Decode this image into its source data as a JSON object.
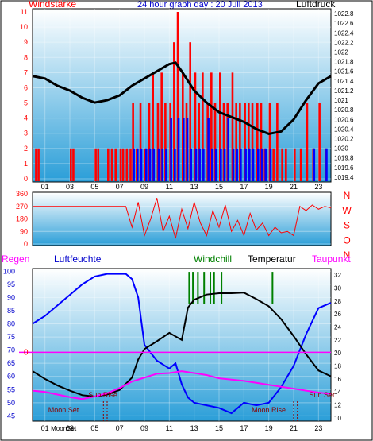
{
  "header": {
    "title": "24 hour graph day : 20 Juli 2013",
    "left_label": "Windstärke",
    "right_label": "Luftdruck"
  },
  "colors": {
    "wind_speed": "#ff0000",
    "wind_gust": "#0000ff",
    "pressure": "#000000",
    "direction": "#ff0000",
    "humidity": "#0000ff",
    "temperature": "#000000",
    "dewpoint": "#ff00ff",
    "windchill": "#008000",
    "rain": "#ff0000",
    "sun_moon": "#8b0000",
    "plot_bg_top": "#ffffff",
    "plot_bg_bottom": "#2a9ed8"
  },
  "chart_data": [
    {
      "type": "line",
      "name": "panel1",
      "title": "24 hour graph day : 20 Juli 2013",
      "ylabel_left": "Windstärke",
      "ylabel_right": "Luftdruck",
      "x_ticks": [
        "01",
        "03",
        "05",
        "07",
        "09",
        "11",
        "13",
        "15",
        "17",
        "19",
        "21",
        "23"
      ],
      "y_left_ticks": [
        "0",
        "1",
        "2",
        "3",
        "4",
        "5",
        "6",
        "7",
        "8",
        "9",
        "10",
        "11"
      ],
      "y_left_range": [
        0,
        11
      ],
      "y_right_ticks": [
        "1019.4",
        "1019.6",
        "1019.8",
        "1020",
        "1020.2",
        "1020.4",
        "1020.6",
        "1020.8",
        "1021",
        "1021.2",
        "1021.4",
        "1021.6",
        "1021.8",
        "1022",
        "1022.2",
        "1022.4",
        "1022.6",
        "1022.8"
      ],
      "y_right_range": [
        1019.3,
        1022.9
      ],
      "pressure_series": {
        "x": [
          0,
          1,
          2,
          3,
          4,
          5,
          6,
          7,
          8,
          9,
          10,
          11,
          11.5,
          12,
          13,
          14,
          15,
          16,
          17,
          18,
          19,
          20,
          21,
          22,
          23,
          24
        ],
        "y": [
          1021.5,
          1021.45,
          1021.3,
          1021.2,
          1021.05,
          1020.95,
          1021.0,
          1021.1,
          1021.3,
          1021.45,
          1021.6,
          1021.75,
          1021.78,
          1021.6,
          1021.2,
          1020.95,
          1020.75,
          1020.65,
          1020.55,
          1020.4,
          1020.3,
          1020.35,
          1020.6,
          1021.0,
          1021.35,
          1021.5
        ]
      },
      "wind_speed_bars": {
        "x": [
          0.2,
          0.4,
          3.0,
          3.2,
          5.0,
          5.2,
          6.0,
          6.3,
          6.6,
          7.0,
          7.2,
          7.5,
          7.8,
          8.0,
          8.3,
          8.6,
          9.0,
          9.3,
          9.6,
          10.0,
          10.3,
          10.6,
          11.0,
          11.3,
          11.6,
          12.0,
          12.3,
          12.6,
          13.0,
          13.3,
          13.6,
          14.0,
          14.3,
          14.6,
          15.0,
          15.3,
          15.6,
          16.0,
          16.3,
          16.6,
          17.0,
          17.3,
          17.6,
          18.0,
          18.3,
          18.6,
          19.0,
          19.3,
          19.6,
          20.0,
          20.3,
          21.0,
          21.5,
          22.0,
          22.5,
          23.0,
          23.5
        ],
        "y": [
          2,
          2,
          2,
          2,
          2,
          2,
          2,
          2,
          2,
          2,
          2,
          2,
          2,
          5,
          2,
          5,
          2,
          5,
          7,
          5,
          7,
          5,
          5,
          9,
          11,
          7,
          5,
          9,
          7,
          5,
          7,
          5,
          7,
          5,
          7,
          5,
          5,
          7,
          5,
          5,
          5,
          5,
          5,
          5,
          5,
          2,
          5,
          2,
          5,
          2,
          2,
          2,
          2,
          5,
          2,
          5,
          2
        ]
      },
      "wind_gust_bars": {
        "x": [
          8.0,
          8.3,
          8.6,
          9.0,
          9.3,
          9.6,
          10.0,
          10.3,
          10.6,
          11.0,
          11.3,
          11.6,
          12.0,
          12.3,
          12.6,
          13.0,
          13.3,
          13.6,
          14.0,
          14.3,
          14.6,
          15.0,
          15.3,
          15.6,
          16.0,
          16.3,
          16.6,
          17.0,
          17.3,
          17.6,
          18.0,
          18.3,
          18.6,
          19.0,
          22.5,
          23.5
        ],
        "y": [
          2,
          2,
          2,
          2,
          2,
          2,
          2,
          2,
          2,
          4,
          2,
          4,
          4,
          4,
          2,
          2,
          2,
          2,
          4,
          2,
          2,
          2,
          2,
          4,
          2,
          2,
          2,
          2,
          2,
          2,
          2,
          2,
          2,
          2,
          2,
          2
        ]
      }
    },
    {
      "type": "scatter",
      "name": "panel2",
      "ylabel_right_letters": [
        "N",
        "W",
        "S",
        "O",
        "N"
      ],
      "y_ticks": [
        "0",
        "90",
        "180",
        "270",
        "360"
      ],
      "y_range": [
        0,
        360
      ],
      "direction_series": {
        "x": [
          0,
          1,
          2,
          3,
          4,
          5,
          6,
          7,
          7.5,
          8,
          8.5,
          9,
          9.5,
          10,
          10.5,
          11,
          11.5,
          12,
          12.5,
          13,
          13.5,
          14,
          14.5,
          15,
          15.5,
          16,
          16.5,
          17,
          17.5,
          18,
          18.5,
          19,
          19.5,
          20,
          20.5,
          21,
          21.5,
          22,
          22.5,
          23,
          23.5,
          24
        ],
        "y": [
          270,
          270,
          270,
          270,
          270,
          270,
          270,
          270,
          270,
          120,
          300,
          60,
          180,
          330,
          90,
          200,
          40,
          250,
          110,
          300,
          150,
          60,
          240,
          120,
          280,
          90,
          170,
          60,
          220,
          100,
          150,
          60,
          120,
          80,
          90,
          60,
          270,
          240,
          280,
          250,
          270,
          260
        ]
      }
    },
    {
      "type": "line",
      "name": "panel3",
      "labels": {
        "rain": "Regen",
        "humidity": "Luftfeuchte",
        "windchill": "Windchill",
        "temperature": "Temperatur",
        "dewpoint": "Taupunkt"
      },
      "y_left_ticks": [
        "45",
        "50",
        "55",
        "60",
        "65",
        "70",
        "75",
        "80",
        "85",
        "90",
        "95",
        "100"
      ],
      "y_left_range": [
        43,
        101
      ],
      "y_right_ticks": [
        "10",
        "12",
        "14",
        "16",
        "18",
        "20",
        "22",
        "24",
        "26",
        "28",
        "30",
        "32"
      ],
      "y_right_range": [
        9.5,
        33
      ],
      "rain_value": "0",
      "humidity_series": {
        "x": [
          0,
          1,
          2,
          3,
          4,
          5,
          6,
          7,
          7.5,
          8,
          8.5,
          9,
          10,
          11,
          11.5,
          12,
          12.5,
          13,
          14,
          15,
          16,
          17,
          18,
          19,
          20,
          21,
          22,
          23,
          24
        ],
        "y": [
          80,
          83,
          87,
          91,
          95,
          98,
          99,
          99,
          99,
          97,
          90,
          72,
          66,
          63,
          65,
          57,
          52,
          50,
          49,
          48,
          46,
          50,
          49,
          50,
          56,
          64,
          76,
          86,
          88
        ]
      },
      "temperature_series": {
        "x": [
          0,
          1,
          2,
          3,
          4,
          5,
          6,
          7,
          8,
          8.5,
          9,
          10,
          11,
          12,
          12.5,
          13,
          14,
          15,
          16,
          17,
          18,
          19,
          20,
          21,
          22,
          23,
          24
        ],
        "y": [
          17.2,
          16.0,
          15.0,
          14.2,
          13.5,
          13.3,
          13.6,
          14.3,
          16.2,
          19.0,
          20.6,
          21.8,
          23.1,
          22.0,
          27.0,
          28.2,
          29.0,
          29.2,
          29.2,
          29.3,
          28.3,
          27.2,
          25.2,
          22.6,
          19.8,
          17.3,
          16.4
        ]
      },
      "dewpoint_series": {
        "x": [
          0,
          1,
          2,
          3,
          4,
          5,
          6,
          7,
          8,
          9,
          10,
          11,
          12,
          13,
          14,
          15,
          16,
          17,
          18,
          19,
          20,
          21,
          22,
          23,
          24
        ],
        "y": [
          14.2,
          14.0,
          13.6,
          13.2,
          12.9,
          13.3,
          13.8,
          14.6,
          15.6,
          16.2,
          16.8,
          16.9,
          17.2,
          16.9,
          16.6,
          16.1,
          15.9,
          15.7,
          15.4,
          15.1,
          14.8,
          14.5,
          14.2,
          13.9,
          13.7
        ]
      },
      "windchill_spikes_x": [
        12.6,
        12.9,
        13.3,
        13.8,
        14.3,
        14.6,
        15.2,
        19.3
      ],
      "windchill_spike_top": 32.5,
      "annotations": [
        {
          "text": "Sun Rise",
          "x": 5.4,
          "marker_x": 5.7
        },
        {
          "text": "Moon Set",
          "x": 3.0,
          "marker_x": 6.0
        },
        {
          "text": "Moon Rise",
          "x": 19.5,
          "marker_x": 21.0
        },
        {
          "text": "Sun Set",
          "x": 22.5,
          "marker_x": 21.3
        }
      ],
      "x_ticks": [
        "01",
        "03",
        "05",
        "07",
        "09",
        "11",
        "13",
        "15",
        "17",
        "19",
        "21",
        "23"
      ],
      "x_tick_overlap_text": "MoonSet"
    }
  ]
}
